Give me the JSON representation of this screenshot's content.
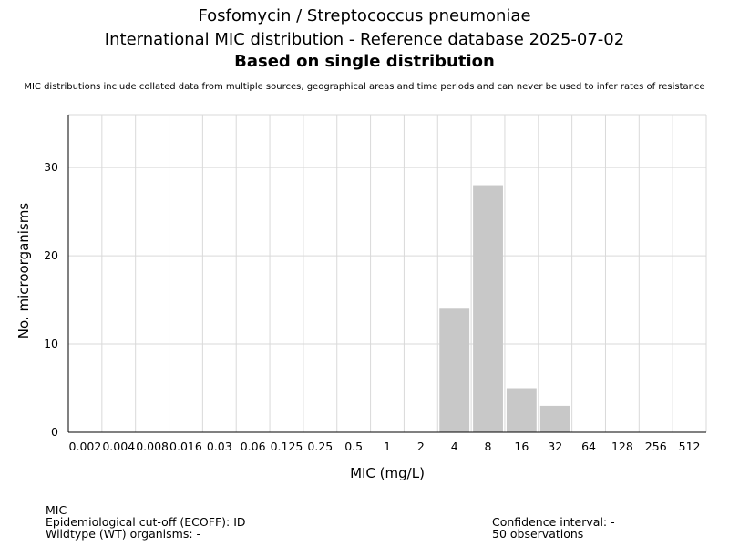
{
  "header": {
    "title": "Fosfomycin / Streptococcus pneumoniae",
    "subtitle": "International MIC distribution - Reference database 2025-07-02",
    "basis": "Based on single distribution",
    "note": "MIC distributions include collated data from multiple sources, geographical areas and time periods and can never be used to infer rates of resistance"
  },
  "chart_data": {
    "type": "bar",
    "xlabel": "MIC (mg/L)",
    "ylabel": "No. microorganisms",
    "categories": [
      "0.002",
      "0.004",
      "0.008",
      "0.016",
      "0.03",
      "0.06",
      "0.125",
      "0.25",
      "0.5",
      "1",
      "2",
      "4",
      "8",
      "16",
      "32",
      "64",
      "128",
      "256",
      "512"
    ],
    "values": [
      0,
      0,
      0,
      0,
      0,
      0,
      0,
      0,
      0,
      0,
      0,
      14,
      28,
      5,
      3,
      0,
      0,
      0,
      0
    ],
    "ylim": [
      0,
      36
    ],
    "yticks": [
      0,
      10,
      20,
      30
    ],
    "grid": true,
    "bar_color": "#c8c8c8",
    "grid_color": "#d9d9d9"
  },
  "footer": {
    "left": [
      "MIC",
      "Epidemiological cut-off (ECOFF): ID",
      "Wildtype (WT) organisms:  -"
    ],
    "right": [
      "Confidence interval: -",
      "50 observations"
    ]
  }
}
